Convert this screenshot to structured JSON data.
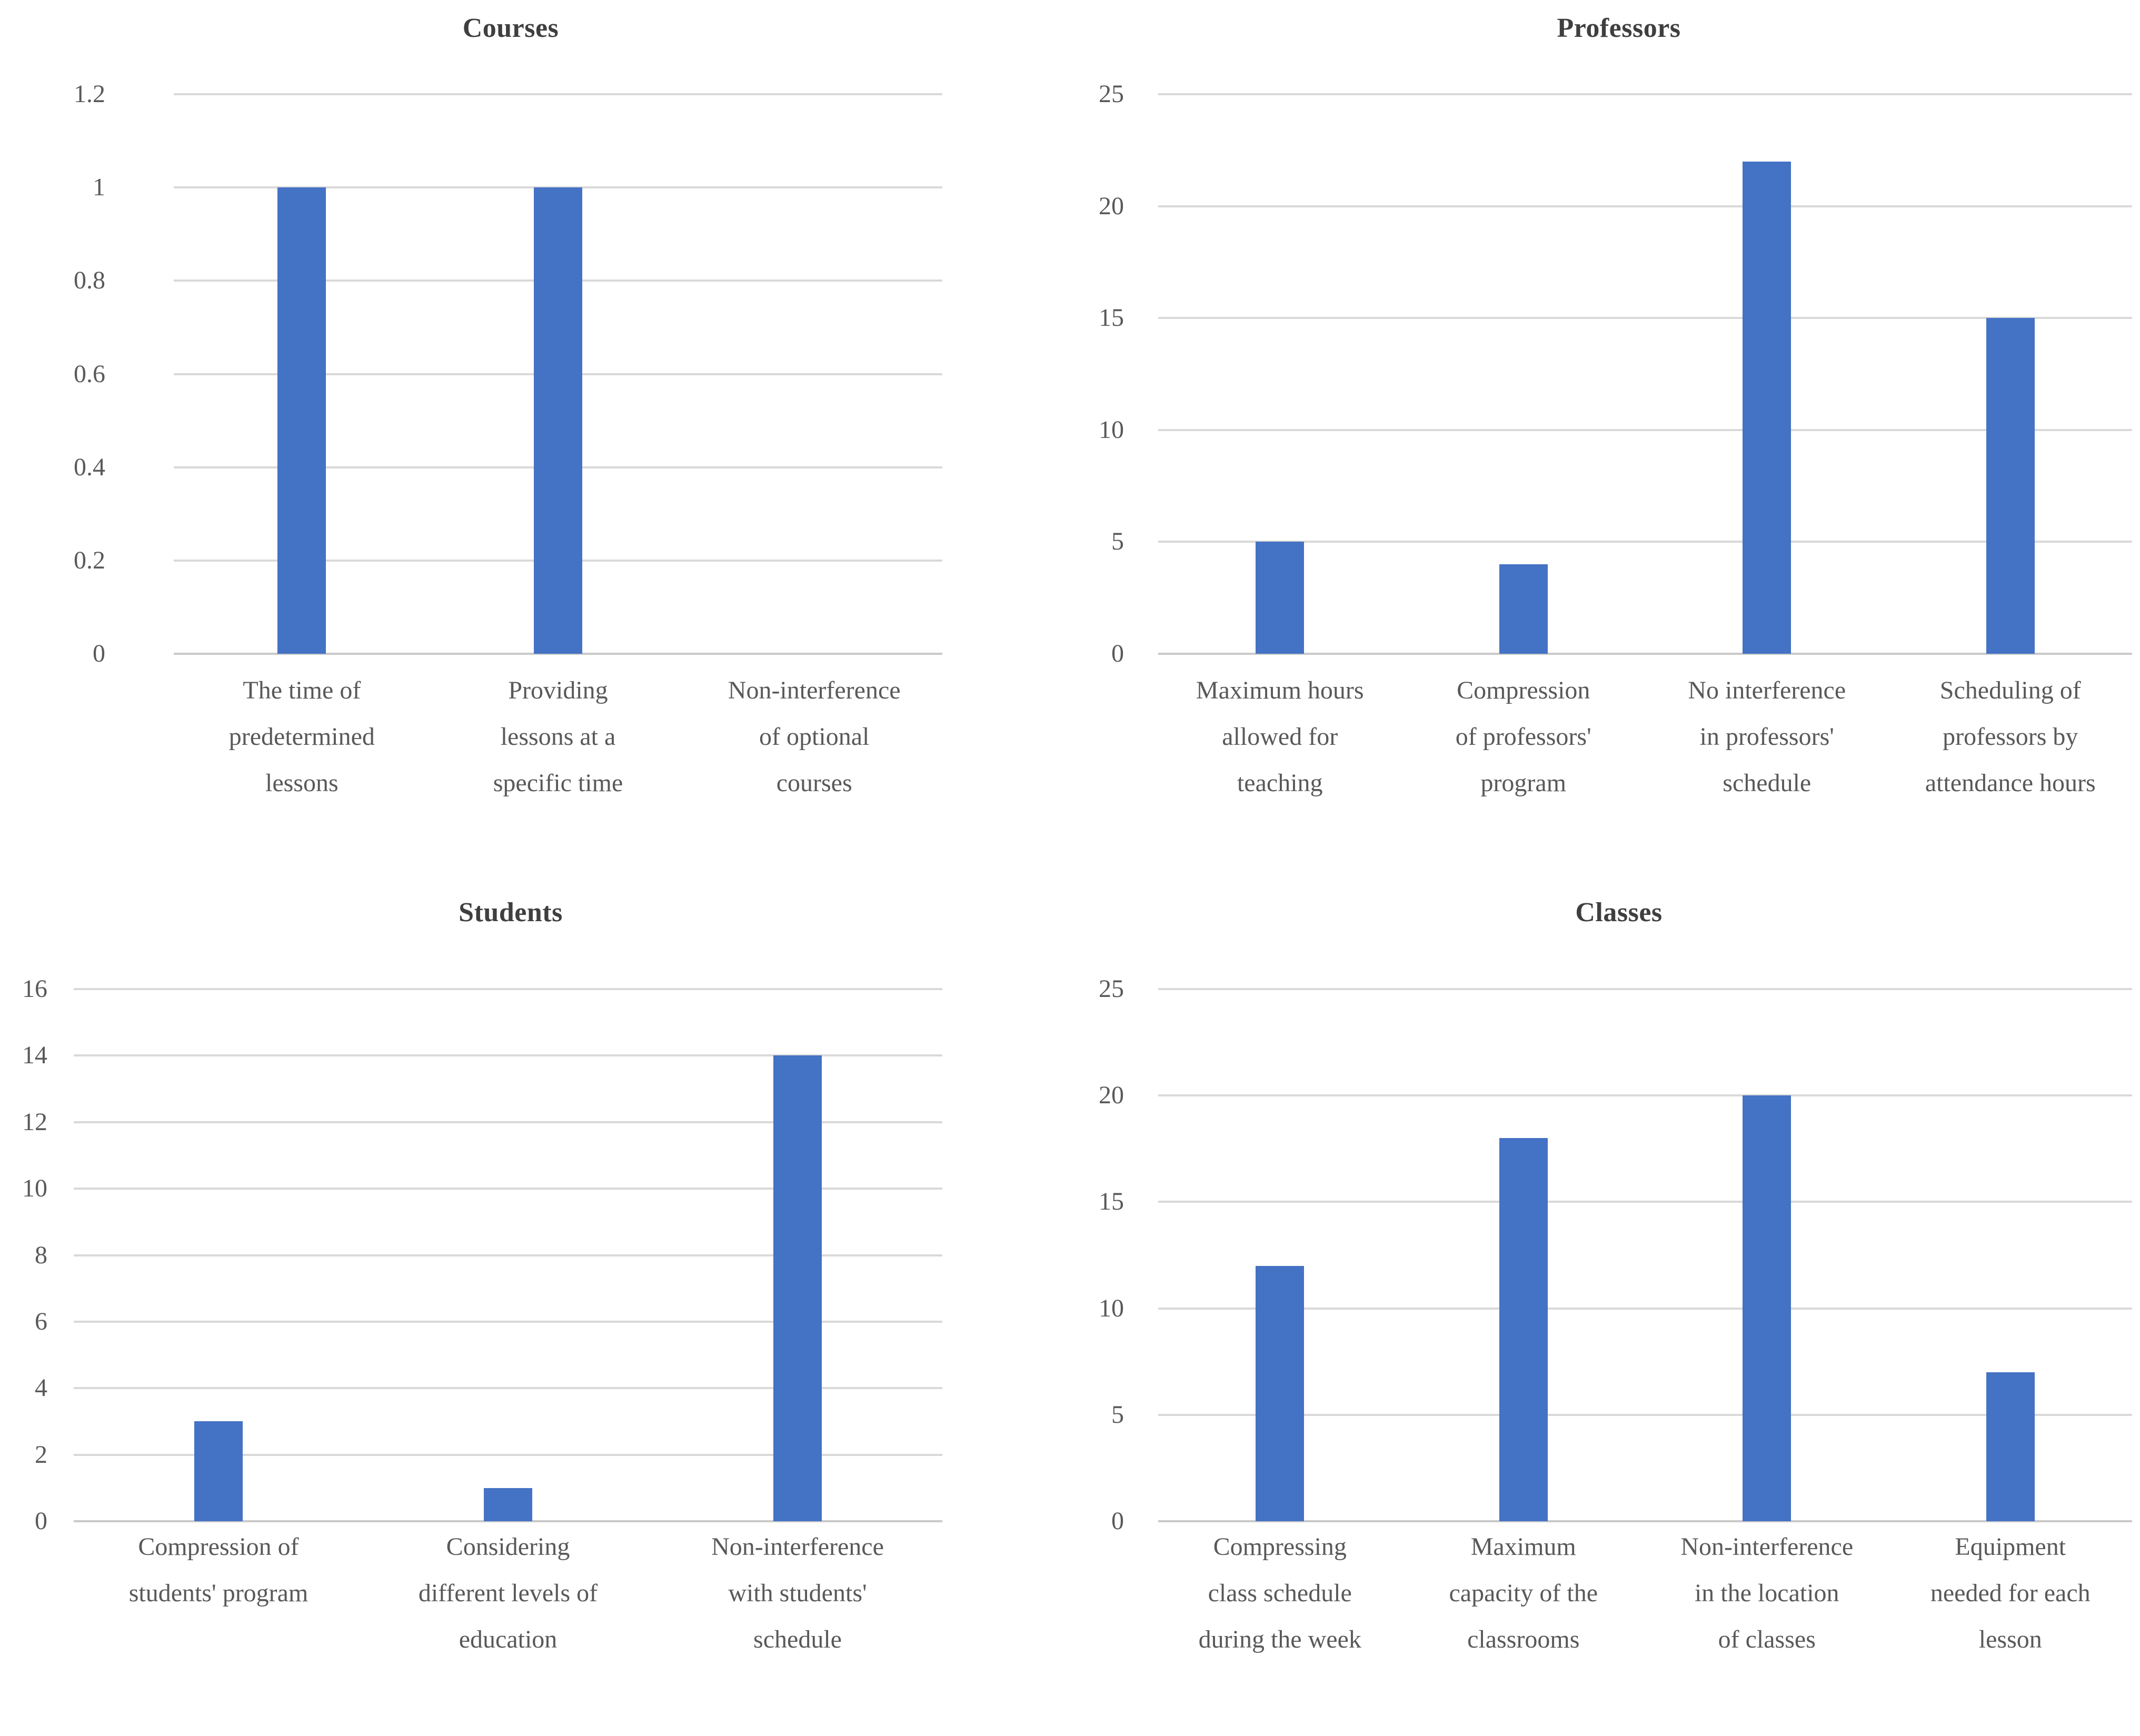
{
  "styles": {
    "bar_color": "#4472C4",
    "gridline_color": "#D9D9D9",
    "axis_baseline_color": "#C9C9C9",
    "tick_text_color": "#595959",
    "title_text_color": "#3F3F3F"
  },
  "chart_data": [
    {
      "type": "bar",
      "title": "Courses",
      "categories": [
        [
          "The time of",
          "predetermined",
          "lessons"
        ],
        [
          "Providing",
          "lessons at a",
          "specific time"
        ],
        [
          "Non-interference",
          "of optional",
          "courses"
        ]
      ],
      "values": [
        1,
        1,
        0
      ],
      "xlabel": "",
      "ylabel": "",
      "ylim": [
        0,
        1.2
      ],
      "yticks": [
        "0",
        "0.2",
        "0.4",
        "0.6",
        "0.8",
        "1",
        "1.2"
      ],
      "grid": true,
      "legend": false
    },
    {
      "type": "bar",
      "title": "Professors",
      "categories": [
        [
          "Maximum hours",
          "allowed for",
          "teaching"
        ],
        [
          "Compression",
          "of professors'",
          "program"
        ],
        [
          "No interference",
          "in professors'",
          "schedule"
        ],
        [
          "Scheduling of",
          "professors by",
          "attendance hours"
        ]
      ],
      "values": [
        5,
        4,
        22,
        15
      ],
      "xlabel": "",
      "ylabel": "",
      "ylim": [
        0,
        25
      ],
      "yticks": [
        "0",
        "5",
        "10",
        "15",
        "20",
        "25"
      ],
      "grid": true,
      "legend": false
    },
    {
      "type": "bar",
      "title": "Students",
      "categories": [
        [
          "Compression of",
          "students' program"
        ],
        [
          "Considering",
          "different levels of",
          "education"
        ],
        [
          "Non-interference",
          "with students'",
          "schedule"
        ]
      ],
      "values": [
        3,
        1,
        14
      ],
      "xlabel": "",
      "ylabel": "",
      "ylim": [
        0,
        16
      ],
      "yticks": [
        "0",
        "2",
        "4",
        "6",
        "8",
        "10",
        "12",
        "14",
        "16"
      ],
      "grid": true,
      "legend": false
    },
    {
      "type": "bar",
      "title": "Classes",
      "categories": [
        [
          "Compressing",
          "class schedule",
          "during the week"
        ],
        [
          "Maximum",
          "capacity of the",
          "classrooms"
        ],
        [
          "Non-interference",
          "in the location",
          "of classes"
        ],
        [
          "Equipment",
          "needed for each",
          "lesson"
        ]
      ],
      "values": [
        12,
        18,
        20,
        7
      ],
      "xlabel": "",
      "ylabel": "",
      "ylim": [
        0,
        25
      ],
      "yticks": [
        "0",
        "5",
        "10",
        "15",
        "20",
        "25"
      ],
      "grid": true,
      "legend": false
    }
  ]
}
